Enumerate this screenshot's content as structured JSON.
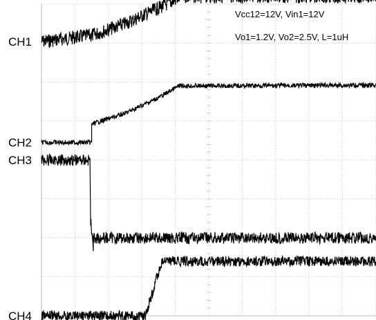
{
  "chart_data": {
    "type": "line",
    "annotations": [
      "Vcc12=12V, Vin1=12V",
      "Vo1=1.2V, Vo2=2.5V, L=1uH"
    ],
    "grid": true,
    "xlim": [
      0,
      10
    ],
    "ylim": [
      0,
      8
    ],
    "series": [
      {
        "name": "CH1",
        "noise": 0.18,
        "x": [
          0,
          1.5,
          2.5,
          3.5,
          4.2,
          10
        ],
        "y": [
          7.04,
          7.2,
          7.5,
          7.9,
          8.2,
          8.2
        ]
      },
      {
        "name": "CH2",
        "noise": 0.06,
        "x": [
          0,
          1.5,
          1.5,
          2.5,
          3.5,
          4.1,
          10
        ],
        "y": [
          4.45,
          4.45,
          4.92,
          5.2,
          5.6,
          5.9,
          5.92
        ]
      },
      {
        "name": "CH3",
        "noise": 0.15,
        "x": [
          0,
          1.45,
          1.47,
          1.55,
          1.55,
          10
        ],
        "y": [
          4.0,
          4.0,
          2.4,
          1.66,
          2.0,
          2.0
        ]
      },
      {
        "name": "CH4",
        "noise": 0.13,
        "x": [
          0,
          3.1,
          3.6,
          10
        ],
        "y": [
          0.0,
          0.0,
          1.4,
          1.4
        ]
      }
    ]
  }
}
